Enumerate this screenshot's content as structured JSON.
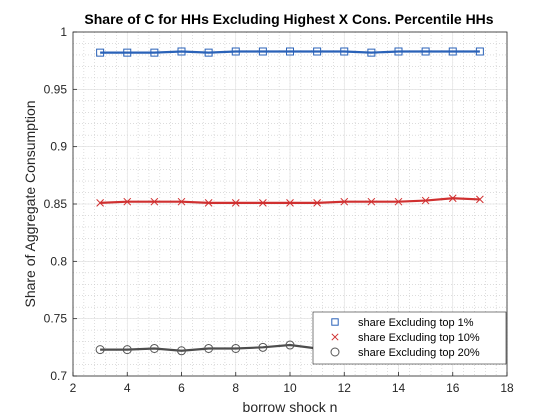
{
  "chart_data": {
    "type": "line",
    "title": "Share of C for HHs Excluding Highest X Cons. Percentile HHs",
    "xlabel": "borrow shock n",
    "ylabel": "Share of Aggregate Consumption",
    "xlim": [
      2,
      18
    ],
    "ylim": [
      0.7,
      1.0
    ],
    "xticks": [
      2,
      4,
      6,
      8,
      10,
      12,
      14,
      16,
      18
    ],
    "yticks": [
      0.7,
      0.75,
      0.8,
      0.85,
      0.9,
      0.95,
      1
    ],
    "ytick_labels": [
      "0.7",
      "0.75",
      "0.8",
      "0.85",
      "0.9",
      "0.95",
      "1"
    ],
    "grid": "minor-dotted",
    "legend_position": "bottom-right",
    "x": [
      3,
      4,
      5,
      6,
      7,
      8,
      9,
      10,
      11,
      12,
      13,
      14,
      15,
      16,
      17
    ],
    "series": [
      {
        "name": "share Excluding top 1%",
        "color": "#2a62b8",
        "marker": "square",
        "values": [
          0.982,
          0.982,
          0.982,
          0.983,
          0.982,
          0.983,
          0.983,
          0.983,
          0.983,
          0.983,
          0.982,
          0.983,
          0.983,
          0.983,
          0.983
        ]
      },
      {
        "name": "share Excluding top 10%",
        "color": "#d03030",
        "marker": "x",
        "values": [
          0.851,
          0.852,
          0.852,
          0.852,
          0.851,
          0.851,
          0.851,
          0.851,
          0.851,
          0.852,
          0.852,
          0.852,
          0.853,
          0.855,
          0.854
        ]
      },
      {
        "name": "share Excluding top 20%",
        "color": "#4d4d4d",
        "marker": "circle",
        "values": [
          0.723,
          0.723,
          0.724,
          0.722,
          0.724,
          0.724,
          0.725,
          0.727,
          0.724,
          0.724,
          0.725,
          0.727,
          0.728,
          0.731,
          0.731
        ]
      }
    ]
  }
}
